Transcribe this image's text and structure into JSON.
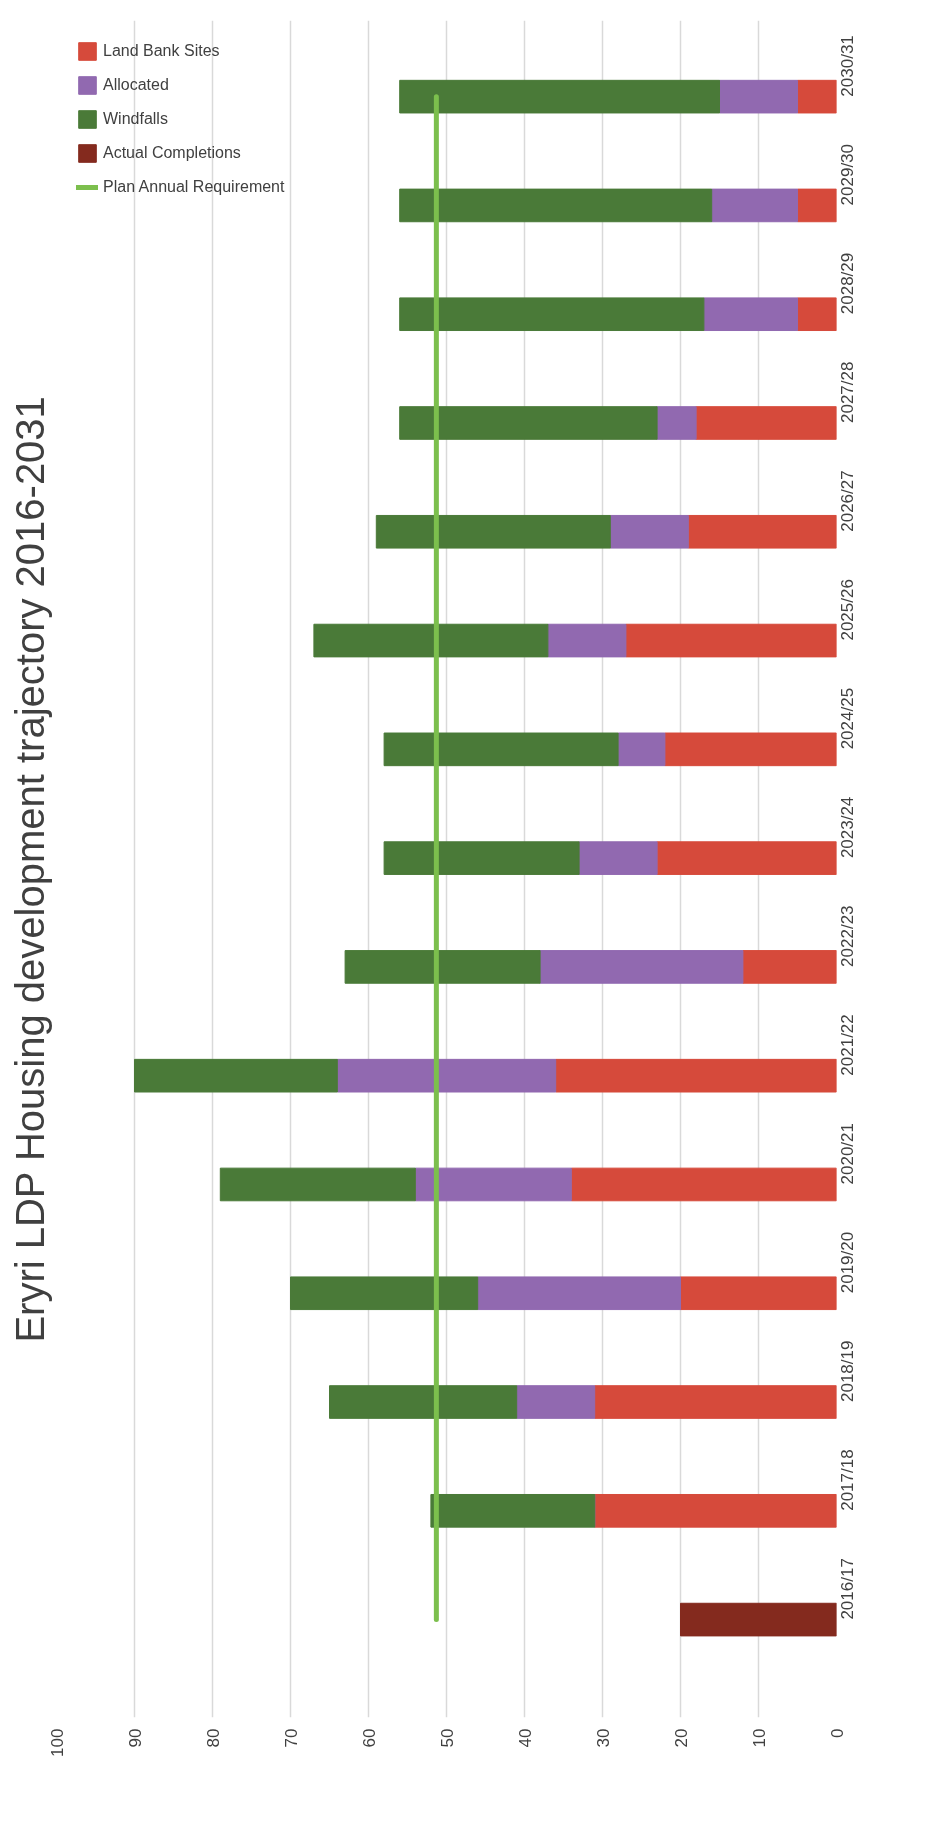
{
  "chart_data": {
    "type": "bar",
    "title": "Eryri LDP Housing development trajectory 2016-2031",
    "orientation": "horizontal",
    "stacked": true,
    "categories": [
      "2030/31",
      "2029/30",
      "2028/29",
      "2027/28",
      "2026/27",
      "2025/26",
      "2024/25",
      "2023/24",
      "2022/23",
      "2021/22",
      "2020/21",
      "2019/20",
      "2018/19",
      "2017/18",
      "2016/17"
    ],
    "series": [
      {
        "name": "Land Bank Sites",
        "color": "#d64a3b",
        "values": [
          5,
          5,
          5,
          18,
          19,
          27,
          22,
          23,
          12,
          36,
          34,
          20,
          31,
          31,
          null
        ]
      },
      {
        "name": "Allocated",
        "color": "#9169b0",
        "values": [
          10,
          11,
          12,
          5,
          10,
          10,
          6,
          10,
          26,
          28,
          20,
          26,
          10,
          0,
          null
        ]
      },
      {
        "name": "Windfalls",
        "color": "#4a7a38",
        "values": [
          41,
          40,
          39,
          33,
          30,
          30,
          30,
          25,
          25,
          26,
          25,
          24,
          24,
          21,
          null
        ]
      },
      {
        "name": "Actual Completions",
        "color": "#842a1e",
        "values": [
          null,
          null,
          null,
          null,
          null,
          null,
          null,
          null,
          null,
          null,
          null,
          null,
          null,
          null,
          20
        ]
      },
      {
        "name": "Plan Annual Requirement",
        "type": "line",
        "color": "#7cbf4d",
        "values": [
          51.3,
          51.3,
          51.3,
          51.3,
          51.3,
          51.3,
          51.3,
          51.3,
          51.3,
          51.3,
          51.3,
          51.3,
          51.3,
          51.3,
          51.3
        ]
      }
    ],
    "xlim": [
      100,
      0
    ],
    "xticks": [
      0,
      10,
      20,
      30,
      40,
      50,
      60,
      70,
      80,
      90,
      100
    ],
    "grid": "x",
    "legend": "top left"
  }
}
